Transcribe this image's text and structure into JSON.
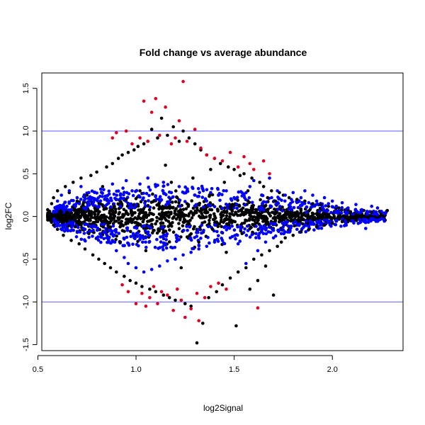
{
  "chart_data": {
    "type": "scatter",
    "title": "Fold change vs average abundance",
    "xlabel": "log2Signal",
    "ylabel": "log2FC",
    "xlim": [
      0.52,
      2.36
    ],
    "ylim": [
      -1.57,
      1.68
    ],
    "x_ticks": [
      {
        "value": 0.5,
        "label": "0.5"
      },
      {
        "value": 1.0,
        "label": "1.0"
      },
      {
        "value": 1.5,
        "label": "1.5"
      },
      {
        "value": 2.0,
        "label": "2.0"
      }
    ],
    "y_ticks": [
      {
        "value": -1.5,
        "label": "-1.5"
      },
      {
        "value": -1.0,
        "label": "-1.0"
      },
      {
        "value": -0.5,
        "label": "-0.5"
      },
      {
        "value": 0.0,
        "label": "0.0"
      },
      {
        "value": 0.5,
        "label": "0.5"
      },
      {
        "value": 1.0,
        "label": "1.0"
      },
      {
        "value": 1.5,
        "label": "1.5"
      }
    ],
    "reference_lines": {
      "y": [
        1.0,
        -1.0
      ],
      "color": "#5a5aff"
    },
    "grid": false,
    "legend": "none",
    "colors": {
      "black": "#000000",
      "blue": "#0000ff",
      "red": "#e00020"
    },
    "series": [
      {
        "color": "black",
        "points": [
          [
            0.55,
            0.08
          ],
          [
            0.56,
            -0.02
          ],
          [
            0.57,
            0.15
          ],
          [
            0.58,
            0.22
          ],
          [
            0.58,
            -0.1
          ],
          [
            0.6,
            0.3
          ],
          [
            0.6,
            -0.15
          ],
          [
            0.62,
            0.05
          ],
          [
            0.63,
            -0.22
          ],
          [
            0.64,
            0.35
          ],
          [
            0.65,
            -0.05
          ],
          [
            0.66,
            0.28
          ],
          [
            0.67,
            -0.28
          ],
          [
            0.68,
            0.4
          ],
          [
            0.69,
            -0.12
          ],
          [
            0.7,
            0.18
          ],
          [
            0.71,
            -0.32
          ],
          [
            0.72,
            0.45
          ],
          [
            0.73,
            0.02
          ],
          [
            0.74,
            -0.38
          ],
          [
            0.75,
            0.25
          ],
          [
            0.76,
            -0.2
          ],
          [
            0.77,
            0.48
          ],
          [
            0.78,
            -0.45
          ],
          [
            0.79,
            0.1
          ],
          [
            0.8,
            0.52
          ],
          [
            0.81,
            -0.5
          ],
          [
            0.82,
            0.0
          ],
          [
            0.83,
            0.35
          ],
          [
            0.84,
            -0.55
          ],
          [
            0.85,
            0.58
          ],
          [
            0.86,
            -0.08
          ],
          [
            0.87,
            -0.6
          ],
          [
            0.88,
            0.62
          ],
          [
            0.89,
            0.12
          ],
          [
            0.9,
            -0.65
          ],
          [
            0.91,
            0.68
          ],
          [
            0.92,
            -0.3
          ],
          [
            0.93,
            0.72
          ],
          [
            0.94,
            -0.7
          ],
          [
            0.95,
            0.2
          ],
          [
            0.96,
            0.75
          ],
          [
            0.97,
            -0.75
          ],
          [
            0.98,
            -0.05
          ],
          [
            0.99,
            0.78
          ],
          [
            1.0,
            -0.78
          ],
          [
            1.01,
            0.82
          ],
          [
            1.02,
            0.3
          ],
          [
            1.03,
            -0.82
          ],
          [
            1.04,
            0.85
          ],
          [
            1.05,
            -0.4
          ],
          [
            1.06,
            0.88
          ],
          [
            1.07,
            -0.85
          ],
          [
            1.08,
            1.02
          ],
          [
            1.09,
            0.1
          ],
          [
            1.1,
            -0.88
          ],
          [
            1.11,
            0.92
          ],
          [
            1.12,
            -0.15
          ],
          [
            1.13,
            1.15
          ],
          [
            1.14,
            -0.92
          ],
          [
            1.15,
            0.6
          ],
          [
            1.16,
            0.95
          ],
          [
            1.17,
            -0.95
          ],
          [
            1.18,
            0.4
          ],
          [
            1.19,
            1.05
          ],
          [
            1.2,
            -0.98
          ],
          [
            1.21,
            0.22
          ],
          [
            1.22,
            0.88
          ],
          [
            1.23,
            -0.6
          ],
          [
            1.24,
            1.0
          ],
          [
            1.25,
            -1.02
          ],
          [
            1.26,
            0.15
          ],
          [
            1.27,
            0.92
          ],
          [
            1.28,
            -1.05
          ],
          [
            1.29,
            0.45
          ],
          [
            1.3,
            0.85
          ],
          [
            1.31,
            -1.48
          ],
          [
            1.32,
            -0.3
          ],
          [
            1.33,
            0.78
          ],
          [
            1.34,
            -1.25
          ],
          [
            1.35,
            0.05
          ],
          [
            1.36,
            0.72
          ],
          [
            1.37,
            -0.95
          ],
          [
            1.38,
            0.55
          ],
          [
            1.39,
            -0.15
          ],
          [
            1.4,
            0.68
          ],
          [
            1.41,
            -0.88
          ],
          [
            1.42,
            0.25
          ],
          [
            1.43,
            0.62
          ],
          [
            1.44,
            -0.8
          ],
          [
            1.45,
            0.4
          ],
          [
            1.46,
            -0.42
          ],
          [
            1.47,
            0.58
          ],
          [
            1.48,
            -0.72
          ],
          [
            1.49,
            0.12
          ],
          [
            1.5,
            0.55
          ],
          [
            1.51,
            -1.28
          ],
          [
            1.52,
            -0.65
          ],
          [
            1.53,
            0.48
          ],
          [
            1.54,
            -0.2
          ],
          [
            1.55,
            0.5
          ],
          [
            1.56,
            -0.6
          ],
          [
            1.57,
            0.3
          ],
          [
            1.58,
            -0.85
          ],
          [
            1.59,
            0.45
          ],
          [
            1.6,
            -0.5
          ],
          [
            1.61,
            0.08
          ],
          [
            1.62,
            -0.75
          ],
          [
            1.63,
            0.4
          ],
          [
            1.64,
            -0.45
          ],
          [
            1.65,
            0.35
          ],
          [
            1.66,
            -0.58
          ],
          [
            1.67,
            0.22
          ],
          [
            1.68,
            -0.4
          ],
          [
            1.69,
            0.3
          ],
          [
            1.7,
            -0.92
          ],
          [
            1.71,
            0.18
          ],
          [
            1.72,
            -0.35
          ],
          [
            1.73,
            0.28
          ],
          [
            1.74,
            -0.3
          ],
          [
            1.75,
            0.25
          ],
          [
            1.76,
            -0.25
          ],
          [
            1.78,
            0.22
          ],
          [
            1.8,
            -0.22
          ],
          [
            1.82,
            0.2
          ],
          [
            1.84,
            -0.18
          ],
          [
            1.86,
            0.18
          ],
          [
            1.88,
            -0.15
          ],
          [
            1.9,
            0.15
          ],
          [
            1.92,
            -0.12
          ],
          [
            1.94,
            0.14
          ],
          [
            1.96,
            -0.1
          ],
          [
            1.98,
            0.12
          ],
          [
            2.0,
            -0.08
          ],
          [
            2.02,
            0.1
          ],
          [
            2.05,
            -0.06
          ],
          [
            2.08,
            0.08
          ],
          [
            2.12,
            -0.04
          ],
          [
            2.16,
            0.07
          ],
          [
            2.2,
            0.05
          ],
          [
            2.24,
            0.06
          ],
          [
            2.28,
            0.07
          ]
        ]
      },
      {
        "color": "blue",
        "points": [
          [
            0.6,
            0.18
          ],
          [
            0.62,
            0.25
          ],
          [
            0.64,
            0.1
          ],
          [
            0.66,
            0.3
          ],
          [
            0.68,
            -0.08
          ],
          [
            0.7,
            0.22
          ],
          [
            0.72,
            0.35
          ],
          [
            0.74,
            -0.15
          ],
          [
            0.76,
            0.28
          ],
          [
            0.78,
            0.15
          ],
          [
            0.8,
            -0.25
          ],
          [
            0.82,
            0.32
          ],
          [
            0.84,
            0.2
          ],
          [
            0.86,
            -0.3
          ],
          [
            0.88,
            0.38
          ],
          [
            0.9,
            -0.4
          ],
          [
            0.92,
            0.25
          ],
          [
            0.94,
            -0.48
          ],
          [
            0.95,
            0.42
          ],
          [
            0.96,
            -0.55
          ],
          [
            0.98,
            0.3
          ],
          [
            1.0,
            -0.6
          ],
          [
            1.02,
            0.38
          ],
          [
            1.04,
            -0.65
          ],
          [
            1.06,
            0.45
          ],
          [
            1.08,
            -0.62
          ],
          [
            1.1,
            0.35
          ],
          [
            1.12,
            -0.58
          ],
          [
            1.14,
            0.4
          ],
          [
            1.16,
            -0.52
          ],
          [
            1.18,
            0.28
          ],
          [
            1.2,
            -0.5
          ],
          [
            1.22,
            0.35
          ],
          [
            1.24,
            -0.45
          ],
          [
            1.26,
            0.3
          ],
          [
            1.28,
            -0.42
          ],
          [
            1.3,
            0.25
          ],
          [
            1.32,
            -0.38
          ],
          [
            1.34,
            0.32
          ],
          [
            1.36,
            -0.35
          ],
          [
            1.38,
            0.28
          ],
          [
            1.4,
            -0.3
          ],
          [
            1.42,
            0.25
          ],
          [
            1.44,
            -0.28
          ],
          [
            1.46,
            0.3
          ],
          [
            1.48,
            -0.25
          ],
          [
            1.5,
            0.22
          ],
          [
            1.52,
            -0.32
          ],
          [
            1.54,
            0.28
          ],
          [
            1.56,
            -0.55
          ],
          [
            1.58,
            0.35
          ],
          [
            1.6,
            0.42
          ],
          [
            1.62,
            -0.4
          ],
          [
            1.64,
            0.25
          ],
          [
            1.66,
            -0.3
          ],
          [
            1.68,
            0.45
          ],
          [
            1.7,
            -0.25
          ],
          [
            1.72,
            0.3
          ],
          [
            1.74,
            -0.2
          ],
          [
            1.76,
            0.25
          ],
          [
            1.78,
            -0.18
          ],
          [
            1.8,
            0.28
          ],
          [
            1.82,
            -0.15
          ],
          [
            1.84,
            0.22
          ],
          [
            1.86,
            0.3
          ],
          [
            1.88,
            -0.12
          ],
          [
            1.9,
            0.25
          ],
          [
            1.92,
            0.18
          ],
          [
            1.94,
            -0.1
          ],
          [
            1.96,
            0.22
          ],
          [
            1.98,
            0.15
          ],
          [
            2.0,
            0.18
          ],
          [
            2.02,
            0.12
          ],
          [
            2.05,
            0.16
          ],
          [
            2.08,
            0.1
          ],
          [
            2.1,
            -0.05
          ],
          [
            2.12,
            0.14
          ],
          [
            2.15,
            0.08
          ],
          [
            2.17,
            -0.14
          ],
          [
            2.2,
            0.12
          ],
          [
            2.23,
            0.1
          ],
          [
            2.25,
            0.06
          ]
        ]
      },
      {
        "color": "red",
        "points": [
          [
            0.88,
            0.92
          ],
          [
            0.9,
            0.98
          ],
          [
            0.93,
            -0.8
          ],
          [
            0.95,
            1.0
          ],
          [
            0.96,
            -0.88
          ],
          [
            0.98,
            0.85
          ],
          [
            1.0,
            -1.02
          ],
          [
            1.02,
            0.92
          ],
          [
            1.03,
            -0.9
          ],
          [
            1.04,
            1.35
          ],
          [
            1.05,
            -1.05
          ],
          [
            1.06,
            0.88
          ],
          [
            1.07,
            -0.95
          ],
          [
            1.08,
            1.22
          ],
          [
            1.09,
            -0.82
          ],
          [
            1.1,
            1.38
          ],
          [
            1.11,
            -1.02
          ],
          [
            1.12,
            0.95
          ],
          [
            1.13,
            -0.88
          ],
          [
            1.15,
            1.28
          ],
          [
            1.16,
            -0.92
          ],
          [
            1.18,
            0.85
          ],
          [
            1.19,
            -1.1
          ],
          [
            1.2,
            0.92
          ],
          [
            1.21,
            -0.85
          ],
          [
            1.22,
            1.12
          ],
          [
            1.23,
            -0.98
          ],
          [
            1.24,
            1.58
          ],
          [
            1.25,
            -1.18
          ],
          [
            1.26,
            0.88
          ],
          [
            1.28,
            -1.08
          ],
          [
            1.3,
            1.02
          ],
          [
            1.31,
            -0.9
          ],
          [
            1.32,
            -1.22
          ],
          [
            1.33,
            0.8
          ],
          [
            1.35,
            -0.95
          ],
          [
            1.36,
            0.72
          ],
          [
            1.38,
            -0.82
          ],
          [
            1.4,
            0.68
          ],
          [
            1.42,
            -0.78
          ],
          [
            1.44,
            0.65
          ],
          [
            1.46,
            -0.85
          ],
          [
            1.48,
            0.75
          ],
          [
            1.52,
            0.58
          ],
          [
            1.55,
            0.7
          ],
          [
            1.58,
            0.62
          ],
          [
            1.6,
            0.55
          ],
          [
            1.62,
            -1.07
          ],
          [
            1.65,
            0.65
          ],
          [
            1.68,
            0.5
          ]
        ]
      }
    ]
  }
}
